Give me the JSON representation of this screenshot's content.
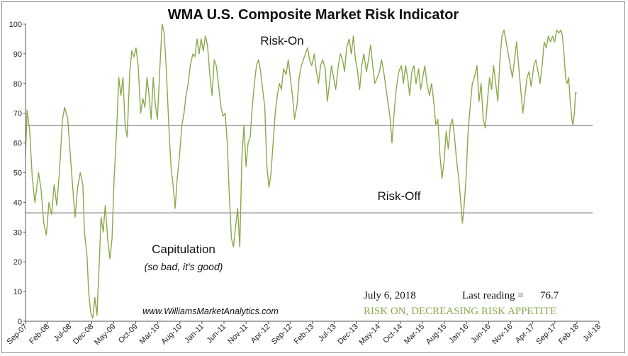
{
  "chart_data": {
    "type": "line",
    "title": "WMA U.S. Composite Market Risk Indicator",
    "xlabel": "",
    "ylabel": "",
    "ylim": [
      0,
      100
    ],
    "yticks": [
      0,
      10,
      20,
      30,
      40,
      50,
      60,
      70,
      80,
      90,
      100
    ],
    "x_start": 2007.67,
    "x_end": 2018.67,
    "tick_labels": [
      "Sep-07",
      "Feb-08",
      "Jul-08",
      "Dec-08",
      "May-09",
      "Oct-09",
      "Mar-10",
      "Aug-10",
      "Jan-11",
      "Jun-11",
      "Nov-11",
      "Apr-12",
      "Sep-12",
      "Feb-13",
      "Jul-13",
      "Dec-13",
      "May-14",
      "Oct-14",
      "Mar-15",
      "Aug-15",
      "Jan-16",
      "Jun-16",
      "Nov-16",
      "Apr-17",
      "Sep-17",
      "Feb-18",
      "Jul-18"
    ],
    "series": [
      {
        "name": "WMA U.S. Composite Market Risk Indicator",
        "color": "#8aa94a",
        "points": [
          [
            2007.67,
            56
          ],
          [
            2007.7,
            71
          ],
          [
            2007.75,
            64
          ],
          [
            2007.8,
            48
          ],
          [
            2007.85,
            40
          ],
          [
            2007.92,
            50
          ],
          [
            2007.97,
            44
          ],
          [
            2008.02,
            33
          ],
          [
            2008.07,
            29
          ],
          [
            2008.12,
            40
          ],
          [
            2008.17,
            36
          ],
          [
            2008.22,
            46
          ],
          [
            2008.27,
            39
          ],
          [
            2008.32,
            50
          ],
          [
            2008.38,
            68
          ],
          [
            2008.42,
            72
          ],
          [
            2008.48,
            68
          ],
          [
            2008.53,
            56
          ],
          [
            2008.58,
            44
          ],
          [
            2008.62,
            35
          ],
          [
            2008.67,
            45
          ],
          [
            2008.72,
            50
          ],
          [
            2008.77,
            46
          ],
          [
            2008.8,
            30
          ],
          [
            2008.85,
            22
          ],
          [
            2008.88,
            10
          ],
          [
            2008.92,
            3
          ],
          [
            2008.96,
            1
          ],
          [
            2009.0,
            8
          ],
          [
            2009.04,
            2
          ],
          [
            2009.08,
            18
          ],
          [
            2009.12,
            35
          ],
          [
            2009.16,
            30
          ],
          [
            2009.2,
            39
          ],
          [
            2009.25,
            27
          ],
          [
            2009.29,
            21
          ],
          [
            2009.33,
            28
          ],
          [
            2009.37,
            48
          ],
          [
            2009.42,
            65
          ],
          [
            2009.46,
            82
          ],
          [
            2009.5,
            76
          ],
          [
            2009.54,
            82
          ],
          [
            2009.58,
            66
          ],
          [
            2009.62,
            62
          ],
          [
            2009.67,
            84
          ],
          [
            2009.71,
            91
          ],
          [
            2009.75,
            89
          ],
          [
            2009.79,
            92
          ],
          [
            2009.83,
            86
          ],
          [
            2009.88,
            70
          ],
          [
            2009.92,
            75
          ],
          [
            2009.96,
            72
          ],
          [
            2010.0,
            82
          ],
          [
            2010.04,
            76
          ],
          [
            2010.08,
            68
          ],
          [
            2010.12,
            82
          ],
          [
            2010.16,
            73
          ],
          [
            2010.2,
            68
          ],
          [
            2010.25,
            86
          ],
          [
            2010.29,
            100
          ],
          [
            2010.33,
            97
          ],
          [
            2010.37,
            85
          ],
          [
            2010.42,
            65
          ],
          [
            2010.46,
            52
          ],
          [
            2010.5,
            46
          ],
          [
            2010.54,
            38
          ],
          [
            2010.58,
            48
          ],
          [
            2010.62,
            55
          ],
          [
            2010.67,
            66
          ],
          [
            2010.71,
            70
          ],
          [
            2010.75,
            76
          ],
          [
            2010.79,
            80
          ],
          [
            2010.83,
            86
          ],
          [
            2010.88,
            90
          ],
          [
            2010.92,
            89
          ],
          [
            2010.96,
            95
          ],
          [
            2011.0,
            90
          ],
          [
            2011.04,
            95
          ],
          [
            2011.08,
            91
          ],
          [
            2011.12,
            96
          ],
          [
            2011.16,
            93
          ],
          [
            2011.21,
            82
          ],
          [
            2011.25,
            76
          ],
          [
            2011.29,
            88
          ],
          [
            2011.33,
            86
          ],
          [
            2011.37,
            80
          ],
          [
            2011.42,
            72
          ],
          [
            2011.46,
            69
          ],
          [
            2011.5,
            70
          ],
          [
            2011.54,
            60
          ],
          [
            2011.58,
            42
          ],
          [
            2011.62,
            28
          ],
          [
            2011.66,
            25
          ],
          [
            2011.7,
            32
          ],
          [
            2011.74,
            38
          ],
          [
            2011.78,
            25
          ],
          [
            2011.82,
            55
          ],
          [
            2011.86,
            66
          ],
          [
            2011.9,
            52
          ],
          [
            2011.94,
            60
          ],
          [
            2011.98,
            62
          ],
          [
            2012.02,
            72
          ],
          [
            2012.06,
            80
          ],
          [
            2012.1,
            86
          ],
          [
            2012.14,
            88
          ],
          [
            2012.18,
            84
          ],
          [
            2012.22,
            78
          ],
          [
            2012.26,
            72
          ],
          [
            2012.3,
            52
          ],
          [
            2012.34,
            45
          ],
          [
            2012.38,
            50
          ],
          [
            2012.42,
            60
          ],
          [
            2012.46,
            70
          ],
          [
            2012.5,
            76
          ],
          [
            2012.54,
            80
          ],
          [
            2012.58,
            78
          ],
          [
            2012.62,
            85
          ],
          [
            2012.67,
            83
          ],
          [
            2012.71,
            88
          ],
          [
            2012.75,
            82
          ],
          [
            2012.79,
            76
          ],
          [
            2012.83,
            68
          ],
          [
            2012.88,
            73
          ],
          [
            2012.92,
            82
          ],
          [
            2012.96,
            86
          ],
          [
            2013.0,
            88
          ],
          [
            2013.04,
            90
          ],
          [
            2013.08,
            92
          ],
          [
            2013.12,
            88
          ],
          [
            2013.16,
            86
          ],
          [
            2013.21,
            90
          ],
          [
            2013.25,
            84
          ],
          [
            2013.29,
            80
          ],
          [
            2013.33,
            86
          ],
          [
            2013.37,
            88
          ],
          [
            2013.42,
            85
          ],
          [
            2013.46,
            74
          ],
          [
            2013.5,
            80
          ],
          [
            2013.54,
            86
          ],
          [
            2013.58,
            82
          ],
          [
            2013.62,
            78
          ],
          [
            2013.67,
            86
          ],
          [
            2013.71,
            90
          ],
          [
            2013.75,
            88
          ],
          [
            2013.79,
            84
          ],
          [
            2013.83,
            92
          ],
          [
            2013.88,
            95
          ],
          [
            2013.92,
            90
          ],
          [
            2013.96,
            96
          ],
          [
            2014.0,
            88
          ],
          [
            2014.04,
            84
          ],
          [
            2014.08,
            78
          ],
          [
            2014.12,
            86
          ],
          [
            2014.16,
            90
          ],
          [
            2014.21,
            84
          ],
          [
            2014.25,
            88
          ],
          [
            2014.29,
            93
          ],
          [
            2014.33,
            86
          ],
          [
            2014.37,
            80
          ],
          [
            2014.42,
            82
          ],
          [
            2014.46,
            84
          ],
          [
            2014.5,
            88
          ],
          [
            2014.54,
            84
          ],
          [
            2014.58,
            79
          ],
          [
            2014.62,
            74
          ],
          [
            2014.66,
            69
          ],
          [
            2014.7,
            60
          ],
          [
            2014.74,
            70
          ],
          [
            2014.78,
            78
          ],
          [
            2014.83,
            84
          ],
          [
            2014.88,
            86
          ],
          [
            2014.92,
            80
          ],
          [
            2014.96,
            86
          ],
          [
            2015.0,
            82
          ],
          [
            2015.04,
            76
          ],
          [
            2015.08,
            84
          ],
          [
            2015.12,
            86
          ],
          [
            2015.16,
            80
          ],
          [
            2015.21,
            85
          ],
          [
            2015.25,
            78
          ],
          [
            2015.29,
            82
          ],
          [
            2015.33,
            86
          ],
          [
            2015.37,
            80
          ],
          [
            2015.42,
            76
          ],
          [
            2015.46,
            80
          ],
          [
            2015.5,
            74
          ],
          [
            2015.54,
            66
          ],
          [
            2015.58,
            68
          ],
          [
            2015.62,
            56
          ],
          [
            2015.66,
            48
          ],
          [
            2015.7,
            54
          ],
          [
            2015.74,
            64
          ],
          [
            2015.78,
            58
          ],
          [
            2015.82,
            66
          ],
          [
            2015.86,
            68
          ],
          [
            2015.9,
            62
          ],
          [
            2015.94,
            54
          ],
          [
            2015.98,
            48
          ],
          [
            2016.02,
            40
          ],
          [
            2016.05,
            33
          ],
          [
            2016.08,
            38
          ],
          [
            2016.12,
            48
          ],
          [
            2016.16,
            64
          ],
          [
            2016.2,
            72
          ],
          [
            2016.24,
            80
          ],
          [
            2016.28,
            82
          ],
          [
            2016.33,
            86
          ],
          [
            2016.37,
            74
          ],
          [
            2016.41,
            80
          ],
          [
            2016.45,
            68
          ],
          [
            2016.49,
            65
          ],
          [
            2016.53,
            74
          ],
          [
            2016.57,
            82
          ],
          [
            2016.61,
            78
          ],
          [
            2016.65,
            86
          ],
          [
            2016.69,
            80
          ],
          [
            2016.73,
            74
          ],
          [
            2016.77,
            88
          ],
          [
            2016.81,
            96
          ],
          [
            2016.85,
            98
          ],
          [
            2016.89,
            94
          ],
          [
            2016.93,
            90
          ],
          [
            2016.97,
            86
          ],
          [
            2017.01,
            82
          ],
          [
            2017.05,
            88
          ],
          [
            2017.09,
            94
          ],
          [
            2017.13,
            86
          ],
          [
            2017.17,
            78
          ],
          [
            2017.21,
            70
          ],
          [
            2017.25,
            76
          ],
          [
            2017.29,
            82
          ],
          [
            2017.33,
            84
          ],
          [
            2017.37,
            79
          ],
          [
            2017.42,
            86
          ],
          [
            2017.46,
            88
          ],
          [
            2017.5,
            84
          ],
          [
            2017.54,
            80
          ],
          [
            2017.58,
            86
          ],
          [
            2017.62,
            94
          ],
          [
            2017.66,
            92
          ],
          [
            2017.7,
            96
          ],
          [
            2017.74,
            94
          ],
          [
            2017.78,
            96
          ],
          [
            2017.82,
            94
          ],
          [
            2017.86,
            98
          ],
          [
            2017.9,
            97
          ],
          [
            2017.94,
            98
          ],
          [
            2017.97,
            96
          ],
          [
            2018.0,
            90
          ],
          [
            2018.03,
            82
          ],
          [
            2018.06,
            80
          ],
          [
            2018.09,
            82
          ],
          [
            2018.12,
            74
          ],
          [
            2018.15,
            68
          ],
          [
            2018.17,
            66
          ],
          [
            2018.2,
            70
          ],
          [
            2018.22,
            77
          ],
          [
            2018.24,
            76.7
          ]
        ]
      }
    ],
    "reference_lines": [
      {
        "name": "Upper threshold",
        "y": 66,
        "from": 2007.67,
        "to": 2018.55
      },
      {
        "name": "Lower threshold",
        "y": 36.5,
        "from": 2007.67,
        "to": 2018.55
      }
    ],
    "annotations": {
      "risk_on": "Risk-On",
      "risk_off": "Risk-Off",
      "capitulation": "Capitulation",
      "capitulation_note": "(so bad, it's good)",
      "website": "www.WilliamsMarketAnalytics.com",
      "date": "July 6, 2018",
      "last_reading_label": "Last reading =",
      "last_reading_value": "76.7",
      "status": "RISK ON, DECREASING RISK APPETITE"
    }
  }
}
